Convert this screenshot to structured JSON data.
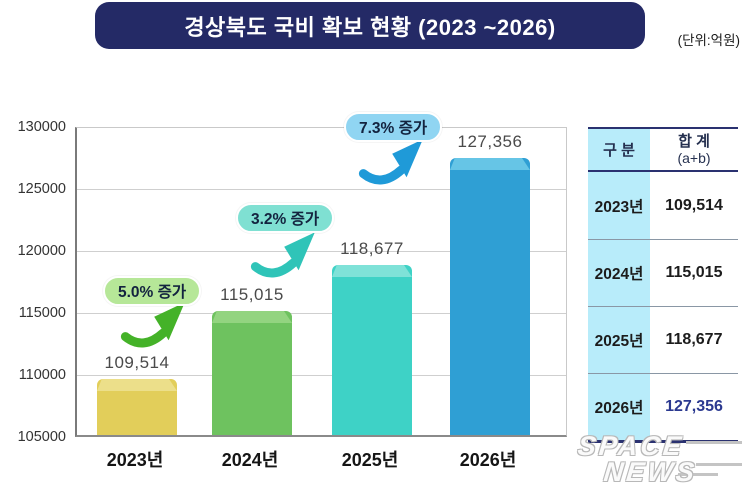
{
  "header": {
    "title": "경상북도 국비 확보 현황 (2023 ~2026)",
    "unit_label": "(단위:억원)",
    "banner_color": "#242a66"
  },
  "chart_data": {
    "type": "bar",
    "title": "경상북도 국비 확보 현황 (2023 ~2026)",
    "unit": "억원",
    "categories": [
      "2023년",
      "2024년",
      "2025년",
      "2026년"
    ],
    "values": [
      109514,
      115015,
      118677,
      127356
    ],
    "value_labels": [
      "109,514",
      "115,015",
      "118,677",
      "127,356"
    ],
    "bar_colors": [
      "#e2ce5a",
      "#6ec25f",
      "#3ed2c6",
      "#2f9fd4"
    ],
    "bar_top_colors": [
      "#ecdf8a",
      "#93d480",
      "#7fe2d8",
      "#66c5e6"
    ],
    "ylim": [
      105000,
      130000
    ],
    "ytick_interval": 5000,
    "yticks": [
      "130000",
      "125000",
      "120000",
      "115000",
      "110000",
      "105000"
    ],
    "grid": true,
    "legend": null,
    "annotations": [
      {
        "label": "5.0% 증가",
        "badge_color": "#b6e798",
        "arrow_color": "#44b228"
      },
      {
        "label": "3.2% 증가",
        "badge_color": "#7fe0d2",
        "arrow_color": "#2fc4b8"
      },
      {
        "label": "7.3% 증가",
        "badge_color": "#90d5f2",
        "arrow_color": "#1f9ad8"
      }
    ]
  },
  "table": {
    "header": {
      "col1": "구 분",
      "col2_line1": "합 계",
      "col2_line2": "(a+b)"
    },
    "rows": [
      {
        "year": "2023년",
        "total": "109,514",
        "highlight": false
      },
      {
        "year": "2024년",
        "total": "115,015",
        "highlight": false
      },
      {
        "year": "2025년",
        "total": "118,677",
        "highlight": false
      },
      {
        "year": "2026년",
        "total": "127,356",
        "highlight": true
      }
    ],
    "col1_bg": "#b8ecfa",
    "border_color": "#2a3170",
    "highlight_text_color": "#2b3990"
  },
  "watermark": {
    "line1": "SPACE",
    "line2": "NEWS"
  }
}
